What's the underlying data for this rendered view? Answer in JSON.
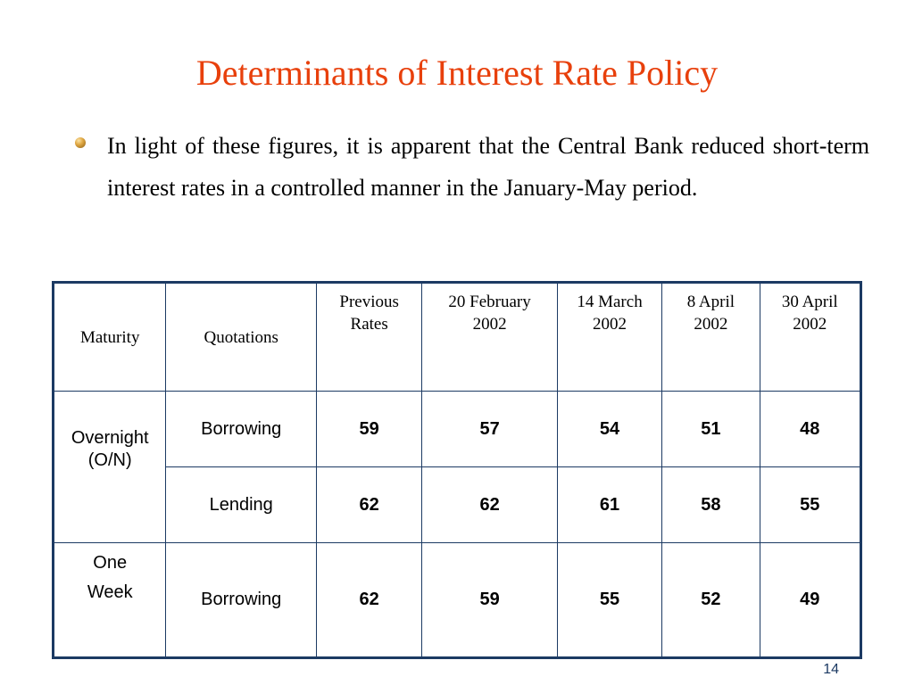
{
  "slide": {
    "title": "Determinants of Interest Rate Policy",
    "bullet": "In light of these figures, it is apparent that the Central Bank reduced short-term interest rates in a controlled manner in the January-May period.",
    "page_number": "14"
  },
  "table": {
    "headers": {
      "maturity": "Maturity",
      "quotations": "Quotations",
      "previous_l1": "Previous",
      "previous_l2": "Rates",
      "feb_l1": "20 February",
      "feb_l2": "2002",
      "mar_l1": "14 March",
      "mar_l2": "2002",
      "apr8_l1": "8 April",
      "apr8_l2": "2002",
      "apr30_l1": "30 April",
      "apr30_l2": "2002"
    },
    "rows": [
      {
        "maturity_l1": "Overnight",
        "maturity_l2": "(O/N)",
        "quotation": "Borrowing",
        "values": [
          "59",
          "57",
          "54",
          "51",
          "48"
        ]
      },
      {
        "quotation": "Lending",
        "values": [
          "62",
          "62",
          "61",
          "58",
          "55"
        ]
      },
      {
        "maturity_l1": "One",
        "maturity_l2": "Week",
        "quotation": "Borrowing",
        "values": [
          "62",
          "59",
          "55",
          "52",
          "49"
        ]
      }
    ]
  },
  "colors": {
    "title": "#e8400c",
    "table_border": "#1c3a63",
    "page_number": "#1c3a63"
  }
}
